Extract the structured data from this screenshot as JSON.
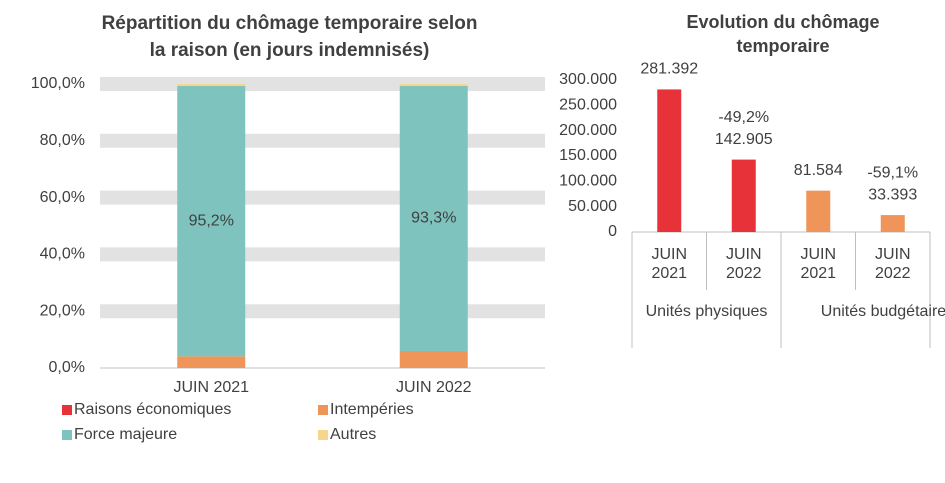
{
  "chart_data": [
    {
      "type": "stacked-bar",
      "title": "Répartition du chômage temporaire selon la raison (en jours indemnisés)",
      "categories": [
        "JUIN 2021",
        "JUIN 2022"
      ],
      "series": [
        {
          "name": "Raisons économiques",
          "color": "#e8323a",
          "values": [
            0,
            0
          ]
        },
        {
          "name": "Intempéries",
          "color": "#f0955a",
          "values": [
            4.1,
            6.0
          ]
        },
        {
          "name": "Force majeure",
          "color": "#7fc3bf",
          "values": [
            95.2,
            93.3
          ],
          "value_labels": [
            "95,2%",
            "93,3%"
          ]
        },
        {
          "name": "Autres",
          "color": "#f9d48b",
          "values": [
            0.7,
            0.7
          ]
        }
      ],
      "ylim": [
        0,
        100
      ],
      "yticks": [
        {
          "value": 0,
          "label": "0,0%"
        },
        {
          "value": 20,
          "label": "20,0%"
        },
        {
          "value": 40,
          "label": "40,0%"
        },
        {
          "value": 60,
          "label": "60,0%"
        },
        {
          "value": 80,
          "label": "80,0%"
        },
        {
          "value": 100,
          "label": "100,0%"
        }
      ],
      "grid": true,
      "legend": "bottom"
    },
    {
      "type": "bar",
      "title": "Evolution du chômage temporaire",
      "categories": [
        "JUIN 2021",
        "JUIN 2022",
        "JUIN 2021",
        "JUIN 2022"
      ],
      "groups": [
        "Unités physiques",
        "Unités budgétaires"
      ],
      "values": [
        281392,
        142905,
        81584,
        33393
      ],
      "value_labels": [
        "281.392",
        "142.905",
        "81.584",
        "33.393"
      ],
      "colors": [
        "#e8323a",
        "#e8323a",
        "#f0955a",
        "#f0955a"
      ],
      "annotations": [
        "-49,2%",
        "-59,1%"
      ],
      "ylim": [
        0,
        300000
      ],
      "yticks": [
        0,
        {
          "value": 50000,
          "label": "50.000"
        },
        {
          "value": 100000,
          "label": "100.000"
        },
        {
          "value": 150000,
          "label": "150.000"
        },
        {
          "value": 200000,
          "label": "200.000"
        },
        {
          "value": 250000,
          "label": "250.000"
        },
        {
          "value": 300000,
          "label": "300.000"
        }
      ]
    }
  ]
}
